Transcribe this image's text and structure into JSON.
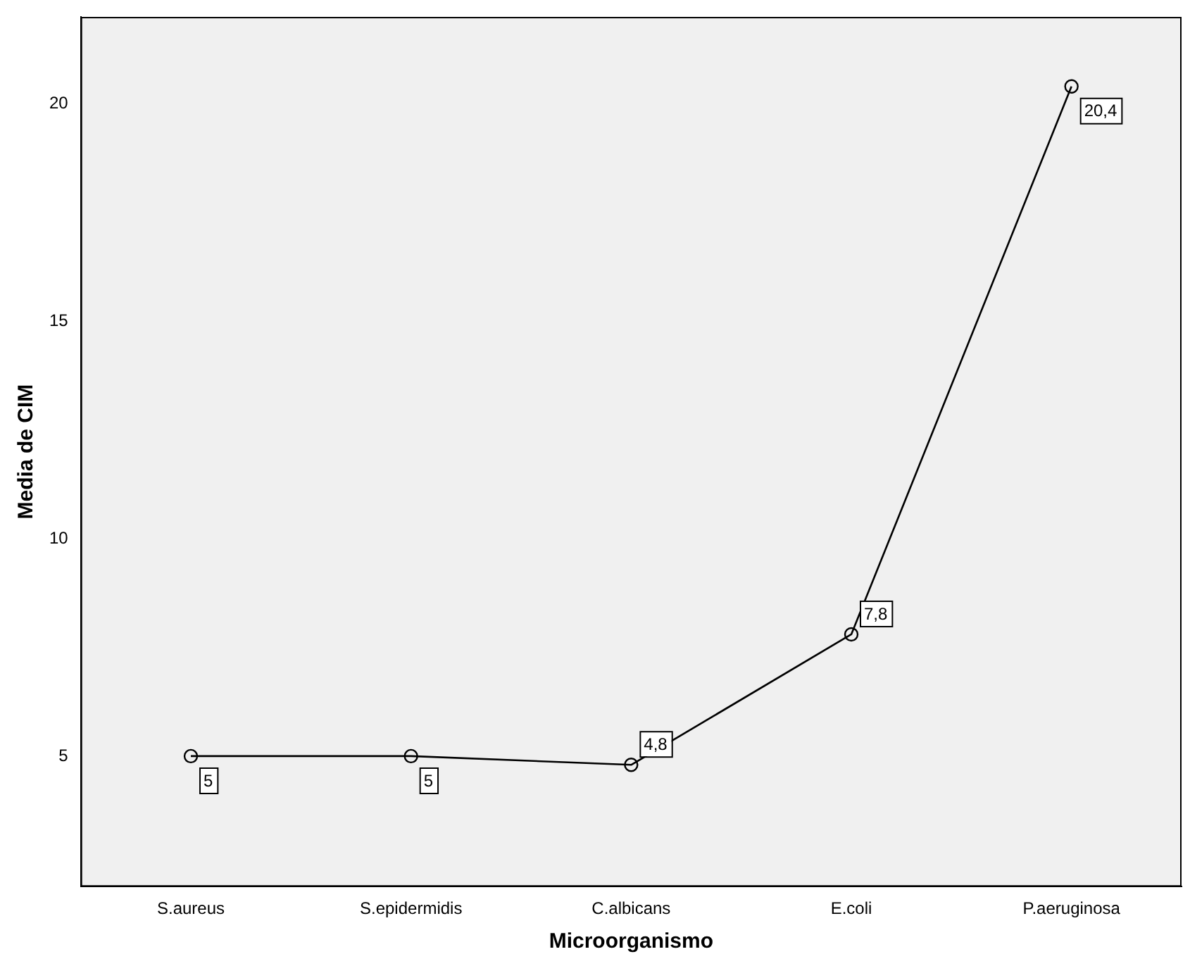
{
  "chart_data": {
    "type": "line",
    "xlabel": "Microorganismo",
    "ylabel": "Media de CIM",
    "categories": [
      "S.aureus",
      "S.epidermidis",
      "C.albicans",
      "E.coli",
      "P.aeruginosa"
    ],
    "series": [
      {
        "color": "#000000",
        "values": [
          5,
          5,
          4.8,
          7.8,
          20.4
        ],
        "value_labels": [
          "5",
          "5",
          "4,8",
          "7,8",
          "20,4"
        ]
      }
    ],
    "ylim": [
      2,
      22
    ],
    "yticks": [
      5,
      10,
      15,
      20
    ],
    "grid": false,
    "legend": false,
    "marker": "circle",
    "line_style": "solid"
  }
}
